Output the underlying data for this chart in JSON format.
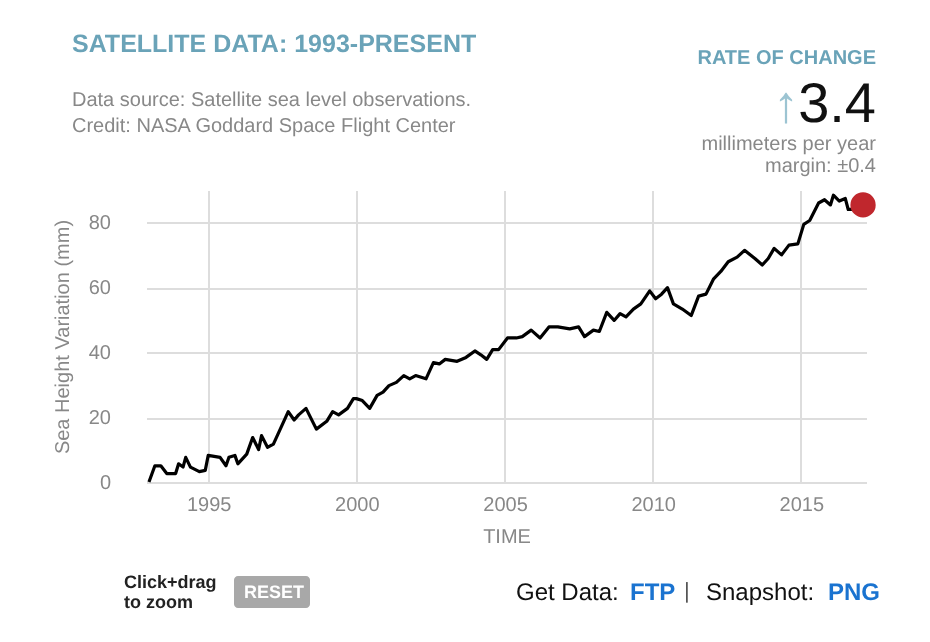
{
  "chart_data": {
    "type": "line",
    "title": "SATELLITE DATA: 1993-PRESENT",
    "subtitle": [
      "Data source: Satellite sea level observations.",
      "Credit: NASA Goddard Space Flight Center"
    ],
    "xlabel": "TIME",
    "ylabel": "Sea Height Variation (mm)",
    "annotations": [
      "RATE OF CHANGE",
      "↑",
      "3.4",
      "millimeters per year",
      "margin: ±0.4",
      "Click+drag",
      "to zoom",
      "RESET",
      "Get Data:",
      "FTP",
      "|",
      "Snapshot:",
      "PNG"
    ],
    "series": [
      {
        "color": "#000000",
        "x": [
          1993.0,
          1993.2,
          1993.4,
          1993.6,
          1993.9,
          1994.0,
          1994.15,
          1994.24,
          1994.4,
          1994.7,
          1994.9,
          1995.0,
          1995.4,
          1995.6,
          1995.7,
          1995.9,
          1996.0,
          1996.3,
          1996.5,
          1996.7,
          1996.8,
          1997.0,
          1997.2,
          1997.4,
          1997.7,
          1997.9,
          1998.05,
          1998.3,
          1998.65,
          1999.0,
          1999.2,
          1999.4,
          1999.7,
          1999.9,
          2000.0,
          2000.2,
          2000.45,
          2000.7,
          2000.9,
          2001.1,
          2001.35,
          2001.6,
          2001.8,
          2002.0,
          2002.35,
          2002.6,
          2002.8,
          2003.0,
          2003.4,
          2003.7,
          2004.0,
          2004.2,
          2004.4,
          2004.6,
          2004.8,
          2005.1,
          2005.4,
          2005.6,
          2005.9,
          2006.2,
          2006.5,
          2006.8,
          2007.2,
          2007.5,
          2007.7,
          2008.0,
          2008.2,
          2008.45,
          2008.7,
          2008.9,
          2009.1,
          2009.35,
          2009.6,
          2009.9,
          2010.1,
          2010.3,
          2010.5,
          2010.7,
          2011.0,
          2011.3,
          2011.55,
          2011.8,
          2012.05,
          2012.3,
          2012.55,
          2012.85,
          2013.1,
          2013.45,
          2013.7,
          2013.9,
          2014.1,
          2014.35,
          2014.6,
          2014.9,
          2015.1,
          2015.3,
          2015.6,
          2015.8,
          2016.0,
          2016.1,
          2016.3,
          2016.5,
          2016.6,
          2016.8,
          2017.1
        ],
        "values": [
          0,
          5,
          5,
          2.6,
          2.6,
          5.6,
          4.6,
          7.6,
          4.6,
          3.2,
          3.6,
          8.2,
          7.6,
          5,
          7.6,
          8.2,
          5.6,
          8.6,
          13.7,
          10,
          14.3,
          10.7,
          11.7,
          15.7,
          21.7,
          19.1,
          20.7,
          22.7,
          16.3,
          18.7,
          21.7,
          20.7,
          22.7,
          25.7,
          25.7,
          25.1,
          22.7,
          26.7,
          27.7,
          29.7,
          30.7,
          32.8,
          31.8,
          32.8,
          31.8,
          36.8,
          36.4,
          37.8,
          37.2,
          38.4,
          40.4,
          39.2,
          37.8,
          40.8,
          40.8,
          44.4,
          44.4,
          44.8,
          46.8,
          44.4,
          47.8,
          47.8,
          47.2,
          47.8,
          44.8,
          46.8,
          46.4,
          52.3,
          49.8,
          51.9,
          50.9,
          53.3,
          54.9,
          58.9,
          56.5,
          57.9,
          59.9,
          54.9,
          53.3,
          51.3,
          57.3,
          57.9,
          62.5,
          64.9,
          67.9,
          69.3,
          71.4,
          68.9,
          66.9,
          68.9,
          72,
          70,
          73,
          73.4,
          79.4,
          80.6,
          86,
          87,
          85.4,
          88.4,
          86.6,
          87.4,
          84,
          84,
          85.4
        ]
      },
      {
        "type": "scatter",
        "color": "#c0272d",
        "marker": "circle",
        "x": [
          2017.1
        ],
        "values": [
          85.4
        ]
      }
    ],
    "xlim": [
      1992.9,
      2017.2
    ],
    "xticks": [
      1995,
      2000,
      2005,
      2010,
      2015
    ],
    "ylim": [
      0,
      90
    ],
    "yticks": [
      0,
      20,
      40,
      60,
      80
    ],
    "grid": true,
    "line_style": "solid"
  }
}
